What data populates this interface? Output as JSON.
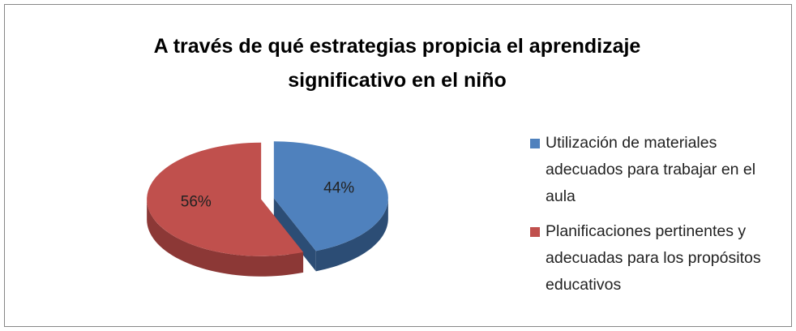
{
  "chart_data": {
    "type": "pie",
    "title": "A través de qué estrategias propicia el aprendizaje significativo en el niño",
    "categories": [
      "Utilización de materiales adecuados para trabajar en el aula",
      "Planificaciones pertinentes y adecuadas para los propósitos educativos"
    ],
    "values": [
      44,
      56
    ],
    "value_labels": [
      "44%",
      "56%"
    ],
    "colors": [
      "#4f81bd",
      "#c0504d"
    ],
    "side_colors": [
      "#2c4d75",
      "#8c3836"
    ]
  }
}
